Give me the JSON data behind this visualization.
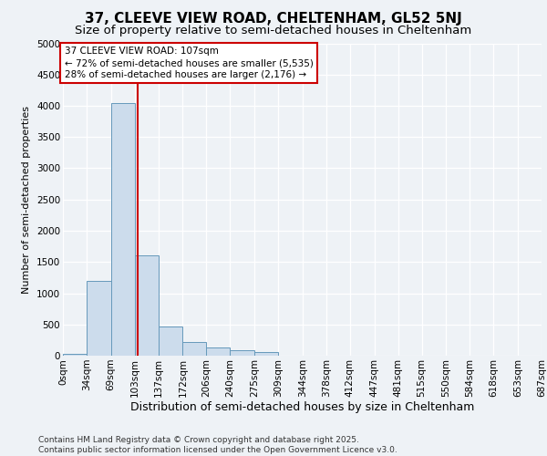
{
  "title1": "37, CLEEVE VIEW ROAD, CHELTENHAM, GL52 5NJ",
  "title2": "Size of property relative to semi-detached houses in Cheltenham",
  "xlabel": "Distribution of semi-detached houses by size in Cheltenham",
  "ylabel": "Number of semi-detached properties",
  "bar_color": "#ccdcec",
  "bar_edge_color": "#6699bb",
  "property_line_color": "#cc0000",
  "property_size": 107,
  "annotation_text": "37 CLEEVE VIEW ROAD: 107sqm\n← 72% of semi-detached houses are smaller (5,535)\n28% of semi-detached houses are larger (2,176) →",
  "annotation_box_color": "#ffffff",
  "annotation_box_edge": "#cc0000",
  "bins": [
    0,
    34,
    69,
    103,
    137,
    172,
    206,
    240,
    275,
    309,
    344,
    378,
    412,
    447,
    481,
    515,
    550,
    584,
    618,
    653,
    687
  ],
  "bin_labels": [
    "0sqm",
    "34sqm",
    "69sqm",
    "103sqm",
    "137sqm",
    "172sqm",
    "206sqm",
    "240sqm",
    "275sqm",
    "309sqm",
    "344sqm",
    "378sqm",
    "412sqm",
    "447sqm",
    "481sqm",
    "515sqm",
    "550sqm",
    "584sqm",
    "618sqm",
    "653sqm",
    "687sqm"
  ],
  "bar_heights": [
    30,
    1200,
    4050,
    1600,
    470,
    220,
    130,
    90,
    60,
    0,
    0,
    0,
    0,
    0,
    0,
    0,
    0,
    0,
    0,
    0
  ],
  "ylim": [
    0,
    5000
  ],
  "yticks": [
    0,
    500,
    1000,
    1500,
    2000,
    2500,
    3000,
    3500,
    4000,
    4500,
    5000
  ],
  "background_color": "#eef2f6",
  "grid_color": "#ffffff",
  "footer": "Contains HM Land Registry data © Crown copyright and database right 2025.\nContains public sector information licensed under the Open Government Licence v3.0.",
  "title1_fontsize": 11,
  "title2_fontsize": 9.5,
  "xlabel_fontsize": 9,
  "ylabel_fontsize": 8,
  "tick_fontsize": 7.5,
  "footer_fontsize": 6.5
}
